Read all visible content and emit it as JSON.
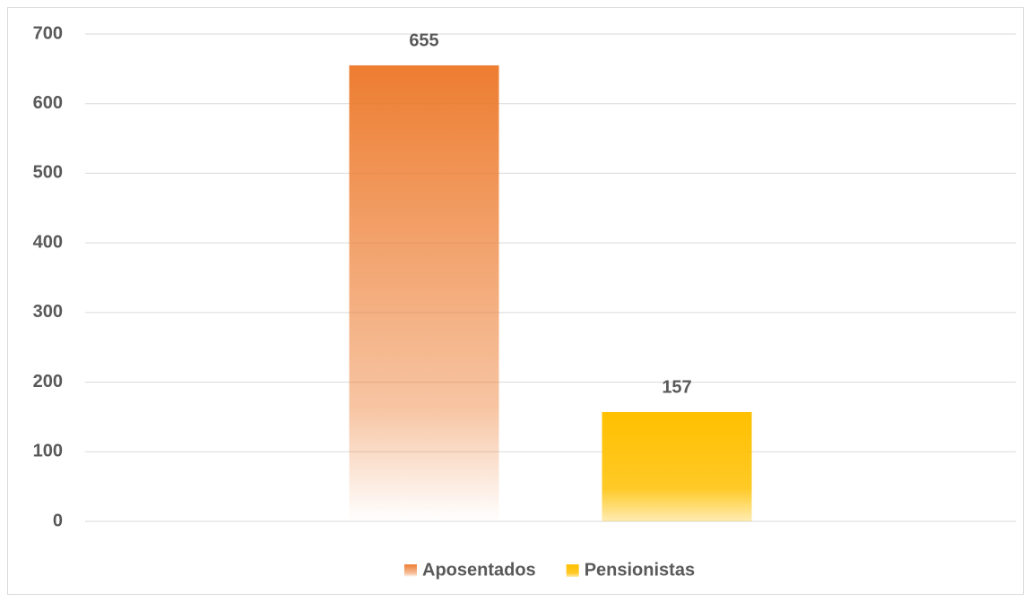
{
  "chart_data": {
    "type": "bar",
    "categories": [
      null
    ],
    "series": [
      {
        "name": "Aposentados",
        "color": "#ed7d31",
        "values": [
          655
        ]
      },
      {
        "name": "Pensionistas",
        "color": "#ffc000",
        "values": [
          157
        ]
      }
    ],
    "ylim": [
      0,
      700
    ],
    "yticks": [
      0,
      100,
      200,
      300,
      400,
      500,
      600,
      700
    ],
    "grid": true,
    "legend": "bottom"
  }
}
